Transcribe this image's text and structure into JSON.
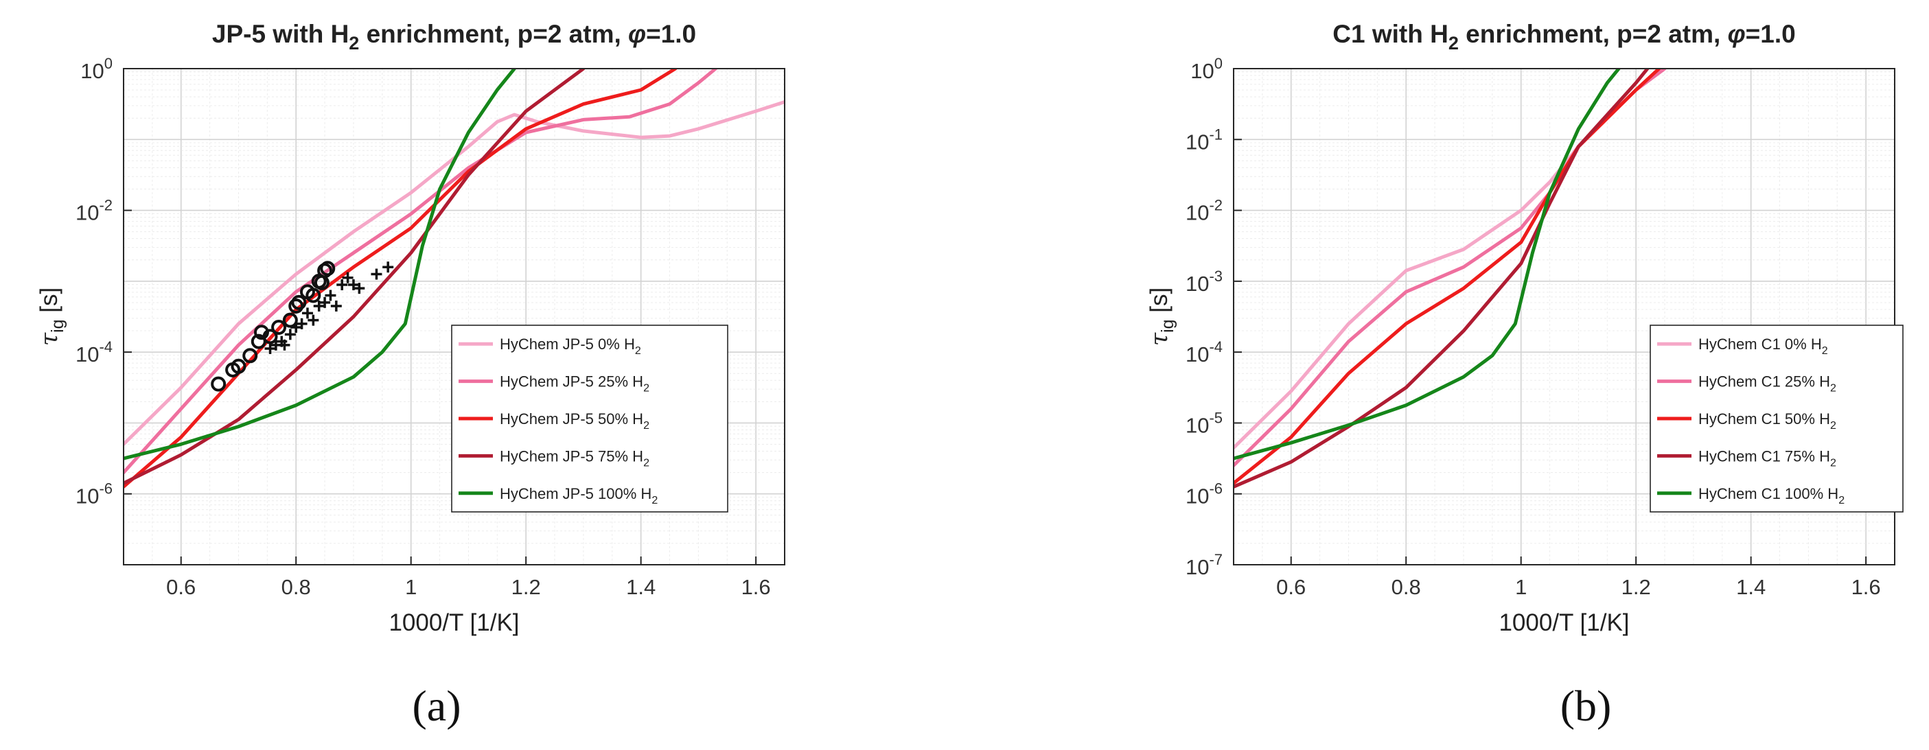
{
  "chart_data": [
    {
      "id": "a",
      "type": "line",
      "panel_label": "(a)",
      "title": "JP-5 with H2 enrichment, p=2 atm, φ=1.0",
      "title_parts": {
        "pre": "JP-5 with H",
        "sub": "2",
        "post": " enrichment, p=2 atm, ",
        "phi": "φ",
        "end": "=1.0"
      },
      "xlabel": "1000/T [1/K]",
      "ylabel": "τig [s]",
      "ylabel_parts": {
        "sym": "τ",
        "sub": "ig",
        "rest": " [s]"
      },
      "xlim": [
        0.5,
        1.65
      ],
      "ylim_exp": [
        -7,
        0
      ],
      "x_ticks": [
        0.6,
        0.8,
        1.0,
        1.2,
        1.4,
        1.6
      ],
      "x_tick_labels": [
        "0.6",
        "0.8",
        "1",
        "1.2",
        "1.4",
        "1.6"
      ],
      "y_ticks_exp": [
        -6,
        -4,
        -2,
        0
      ],
      "y_tick_labels": [
        "10",
        "10",
        "10",
        "10"
      ],
      "y_tick_sups": [
        "-6",
        "-4",
        "-2",
        "0"
      ],
      "grid": true,
      "legend_position": "lower-right",
      "series": [
        {
          "name": "HyChem JP-5 0% H2",
          "label_pre": "HyChem JP-5 0% H",
          "label_sub": "2",
          "color": "#f5a7c7",
          "points": [
            [
              0.5,
              -5.3
            ],
            [
              0.6,
              -4.5
            ],
            [
              0.7,
              -3.6
            ],
            [
              0.8,
              -2.9
            ],
            [
              0.9,
              -2.3
            ],
            [
              1.0,
              -1.75
            ],
            [
              1.1,
              -1.1
            ],
            [
              1.15,
              -0.75
            ],
            [
              1.18,
              -0.65
            ],
            [
              1.22,
              -0.75
            ],
            [
              1.3,
              -0.88
            ],
            [
              1.4,
              -0.97
            ],
            [
              1.45,
              -0.95
            ],
            [
              1.5,
              -0.85
            ],
            [
              1.6,
              -0.6
            ],
            [
              1.65,
              -0.47
            ]
          ]
        },
        {
          "name": "HyChem JP-5 25% H2",
          "label_pre": "HyChem JP-5 25% H",
          "label_sub": "2",
          "color": "#ef6f9e",
          "points": [
            [
              0.5,
              -5.7
            ],
            [
              0.6,
              -4.8
            ],
            [
              0.7,
              -3.9
            ],
            [
              0.8,
              -3.15
            ],
            [
              0.9,
              -2.6
            ],
            [
              1.0,
              -2.05
            ],
            [
              1.1,
              -1.4
            ],
            [
              1.2,
              -0.9
            ],
            [
              1.3,
              -0.72
            ],
            [
              1.38,
              -0.68
            ],
            [
              1.45,
              -0.5
            ],
            [
              1.5,
              -0.2
            ],
            [
              1.53,
              0.0
            ]
          ]
        },
        {
          "name": "HyChem JP-5 50% H2",
          "label_pre": "HyChem JP-5 50% H",
          "label_sub": "2",
          "color": "#ee1c1c",
          "points": [
            [
              0.5,
              -5.9
            ],
            [
              0.6,
              -5.2
            ],
            [
              0.7,
              -4.3
            ],
            [
              0.8,
              -3.4
            ],
            [
              0.9,
              -2.8
            ],
            [
              1.0,
              -2.25
            ],
            [
              1.1,
              -1.45
            ],
            [
              1.2,
              -0.85
            ],
            [
              1.3,
              -0.5
            ],
            [
              1.4,
              -0.3
            ],
            [
              1.46,
              0.0
            ]
          ]
        },
        {
          "name": "HyChem JP-5 75% H2",
          "label_pre": "HyChem JP-5 75% H",
          "label_sub": "2",
          "color": "#b01c32",
          "points": [
            [
              0.5,
              -5.85
            ],
            [
              0.6,
              -5.45
            ],
            [
              0.7,
              -4.95
            ],
            [
              0.8,
              -4.25
            ],
            [
              0.9,
              -3.5
            ],
            [
              1.0,
              -2.6
            ],
            [
              1.1,
              -1.5
            ],
            [
              1.2,
              -0.6
            ],
            [
              1.25,
              -0.3
            ],
            [
              1.3,
              0.0
            ]
          ]
        },
        {
          "name": "HyChem JP-5 100% H2",
          "label_pre": "HyChem JP-5 100% H",
          "label_sub": "2",
          "color": "#15861a",
          "points": [
            [
              0.5,
              -5.5
            ],
            [
              0.6,
              -5.3
            ],
            [
              0.7,
              -5.05
            ],
            [
              0.8,
              -4.75
            ],
            [
              0.9,
              -4.35
            ],
            [
              0.95,
              -4.0
            ],
            [
              0.99,
              -3.6
            ],
            [
              1.02,
              -2.5
            ],
            [
              1.05,
              -1.7
            ],
            [
              1.1,
              -0.9
            ],
            [
              1.15,
              -0.3
            ],
            [
              1.18,
              0.0
            ]
          ]
        }
      ],
      "markers": [
        {
          "symbol": "o",
          "points": [
            [
              0.665,
              -4.45
            ],
            [
              0.69,
              -4.25
            ],
            [
              0.7,
              -4.2
            ],
            [
              0.72,
              -4.05
            ],
            [
              0.735,
              -3.85
            ],
            [
              0.74,
              -3.72
            ],
            [
              0.755,
              -3.78
            ],
            [
              0.77,
              -3.65
            ],
            [
              0.79,
              -3.55
            ],
            [
              0.8,
              -3.35
            ],
            [
              0.805,
              -3.3
            ],
            [
              0.82,
              -3.15
            ],
            [
              0.83,
              -3.2
            ],
            [
              0.84,
              -3.0
            ],
            [
              0.845,
              -3.02
            ],
            [
              0.85,
              -2.85
            ],
            [
              0.855,
              -2.82
            ]
          ]
        },
        {
          "symbol": "+",
          "points": [
            [
              0.755,
              -3.95
            ],
            [
              0.765,
              -3.9
            ],
            [
              0.775,
              -3.85
            ],
            [
              0.78,
              -3.9
            ],
            [
              0.79,
              -3.75
            ],
            [
              0.8,
              -3.65
            ],
            [
              0.81,
              -3.6
            ],
            [
              0.82,
              -3.45
            ],
            [
              0.83,
              -3.55
            ],
            [
              0.84,
              -3.35
            ],
            [
              0.85,
              -3.3
            ],
            [
              0.86,
              -3.2
            ],
            [
              0.87,
              -3.35
            ],
            [
              0.88,
              -3.05
            ],
            [
              0.89,
              -2.95
            ],
            [
              0.9,
              -3.05
            ],
            [
              0.91,
              -3.1
            ],
            [
              0.94,
              -2.9
            ],
            [
              0.96,
              -2.8
            ]
          ]
        }
      ]
    },
    {
      "id": "b",
      "type": "line",
      "panel_label": "(b)",
      "title": "C1 with H2 enrichment, p=2 atm, φ=1.0",
      "title_parts": {
        "pre": "C1 with H",
        "sub": "2",
        "post": " enrichment, p=2 atm, ",
        "phi": "φ",
        "end": "=1.0"
      },
      "xlabel": "1000/T [1/K]",
      "ylabel": "τig [s]",
      "ylabel_parts": {
        "sym": "τ",
        "sub": "ig",
        "rest": " [s]"
      },
      "xlim": [
        0.5,
        1.65
      ],
      "ylim_exp": [
        -7,
        0
      ],
      "x_ticks": [
        0.6,
        0.8,
        1.0,
        1.2,
        1.4,
        1.6
      ],
      "x_tick_labels": [
        "0.6",
        "0.8",
        "1",
        "1.2",
        "1.4",
        "1.6"
      ],
      "y_ticks_exp": [
        -7,
        -6,
        -5,
        -4,
        -3,
        -2,
        -1,
        0
      ],
      "y_tick_labels": [
        "10",
        "10",
        "10",
        "10",
        "10",
        "10",
        "10",
        "10"
      ],
      "y_tick_sups": [
        "-7",
        "-6",
        "-5",
        "-4",
        "-3",
        "-2",
        "-1",
        "0"
      ],
      "grid": true,
      "legend_position": "lower-right",
      "series": [
        {
          "name": "HyChem C1 0% H2",
          "label_pre": "HyChem C1 0% H",
          "label_sub": "2",
          "color": "#f5a7c7",
          "points": [
            [
              0.5,
              -5.35
            ],
            [
              0.6,
              -4.55
            ],
            [
              0.7,
              -3.6
            ],
            [
              0.8,
              -2.85
            ],
            [
              0.85,
              -2.7
            ],
            [
              0.9,
              -2.55
            ],
            [
              1.0,
              -2.0
            ],
            [
              1.05,
              -1.6
            ],
            [
              1.1,
              -1.1
            ],
            [
              1.2,
              -0.3
            ],
            [
              1.25,
              0.0
            ]
          ]
        },
        {
          "name": "HyChem C1 25% H2",
          "label_pre": "HyChem C1 25% H",
          "label_sub": "2",
          "color": "#ef6f9e",
          "points": [
            [
              0.5,
              -5.6
            ],
            [
              0.6,
              -4.8
            ],
            [
              0.7,
              -3.85
            ],
            [
              0.8,
              -3.15
            ],
            [
              0.9,
              -2.8
            ],
            [
              1.0,
              -2.25
            ],
            [
              1.05,
              -1.75
            ],
            [
              1.1,
              -1.1
            ],
            [
              1.2,
              -0.3
            ],
            [
              1.25,
              0.0
            ]
          ]
        },
        {
          "name": "HyChem C1 50% H2",
          "label_pre": "HyChem C1 50% H",
          "label_sub": "2",
          "color": "#ee1c1c",
          "points": [
            [
              0.5,
              -5.85
            ],
            [
              0.6,
              -5.2
            ],
            [
              0.7,
              -4.3
            ],
            [
              0.8,
              -3.6
            ],
            [
              0.9,
              -3.1
            ],
            [
              1.0,
              -2.45
            ],
            [
              1.05,
              -1.75
            ],
            [
              1.1,
              -1.1
            ],
            [
              1.2,
              -0.3
            ],
            [
              1.24,
              0.0
            ]
          ]
        },
        {
          "name": "HyChem C1 75% H2",
          "label_pre": "HyChem C1 75% H",
          "label_sub": "2",
          "color": "#b01c32",
          "points": [
            [
              0.5,
              -5.9
            ],
            [
              0.6,
              -5.55
            ],
            [
              0.7,
              -5.05
            ],
            [
              0.8,
              -4.5
            ],
            [
              0.9,
              -3.7
            ],
            [
              1.0,
              -2.75
            ],
            [
              1.05,
              -1.9
            ],
            [
              1.1,
              -1.1
            ],
            [
              1.2,
              -0.2
            ],
            [
              1.22,
              0.0
            ]
          ]
        },
        {
          "name": "HyChem C1 100% H2",
          "label_pre": "HyChem C1 100% H",
          "label_sub": "2",
          "color": "#15861a",
          "points": [
            [
              0.5,
              -5.5
            ],
            [
              0.6,
              -5.28
            ],
            [
              0.7,
              -5.03
            ],
            [
              0.8,
              -4.75
            ],
            [
              0.9,
              -4.35
            ],
            [
              0.95,
              -4.05
            ],
            [
              0.99,
              -3.6
            ],
            [
              1.02,
              -2.6
            ],
            [
              1.05,
              -1.75
            ],
            [
              1.1,
              -0.85
            ],
            [
              1.15,
              -0.2
            ],
            [
              1.17,
              0.0
            ]
          ]
        }
      ],
      "markers": []
    }
  ]
}
